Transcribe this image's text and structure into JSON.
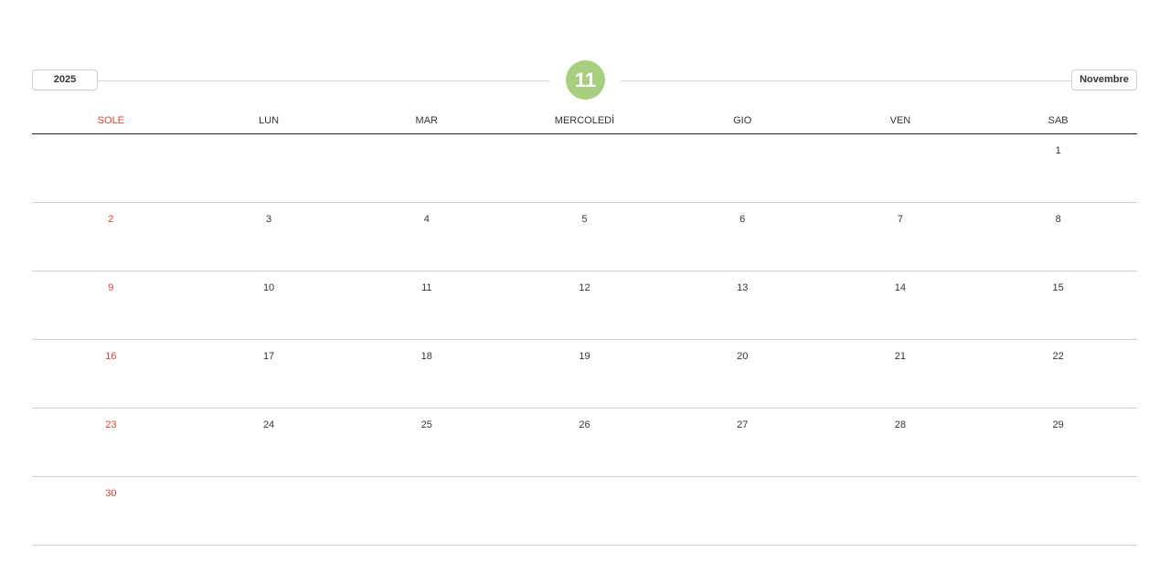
{
  "header": {
    "year": "2025",
    "day": "11",
    "month": "Novembre",
    "accent": "#a8cf7e",
    "sunday_color": "#e0402e"
  },
  "weekdays": [
    "SOLE",
    "LUN",
    "MAR",
    "MERCOLEDÌ",
    "GIO",
    "VEN",
    "SAB"
  ],
  "weeks": [
    [
      "",
      "",
      "",
      "",
      "",
      "",
      "1"
    ],
    [
      "2",
      "3",
      "4",
      "5",
      "6",
      "7",
      "8"
    ],
    [
      "9",
      "10",
      "11",
      "12",
      "13",
      "14",
      "15"
    ],
    [
      "16",
      "17",
      "18",
      "19",
      "20",
      "21",
      "22"
    ],
    [
      "23",
      "24",
      "25",
      "26",
      "27",
      "28",
      "29"
    ],
    [
      "30",
      "",
      "",
      "",
      "",
      "",
      ""
    ]
  ]
}
